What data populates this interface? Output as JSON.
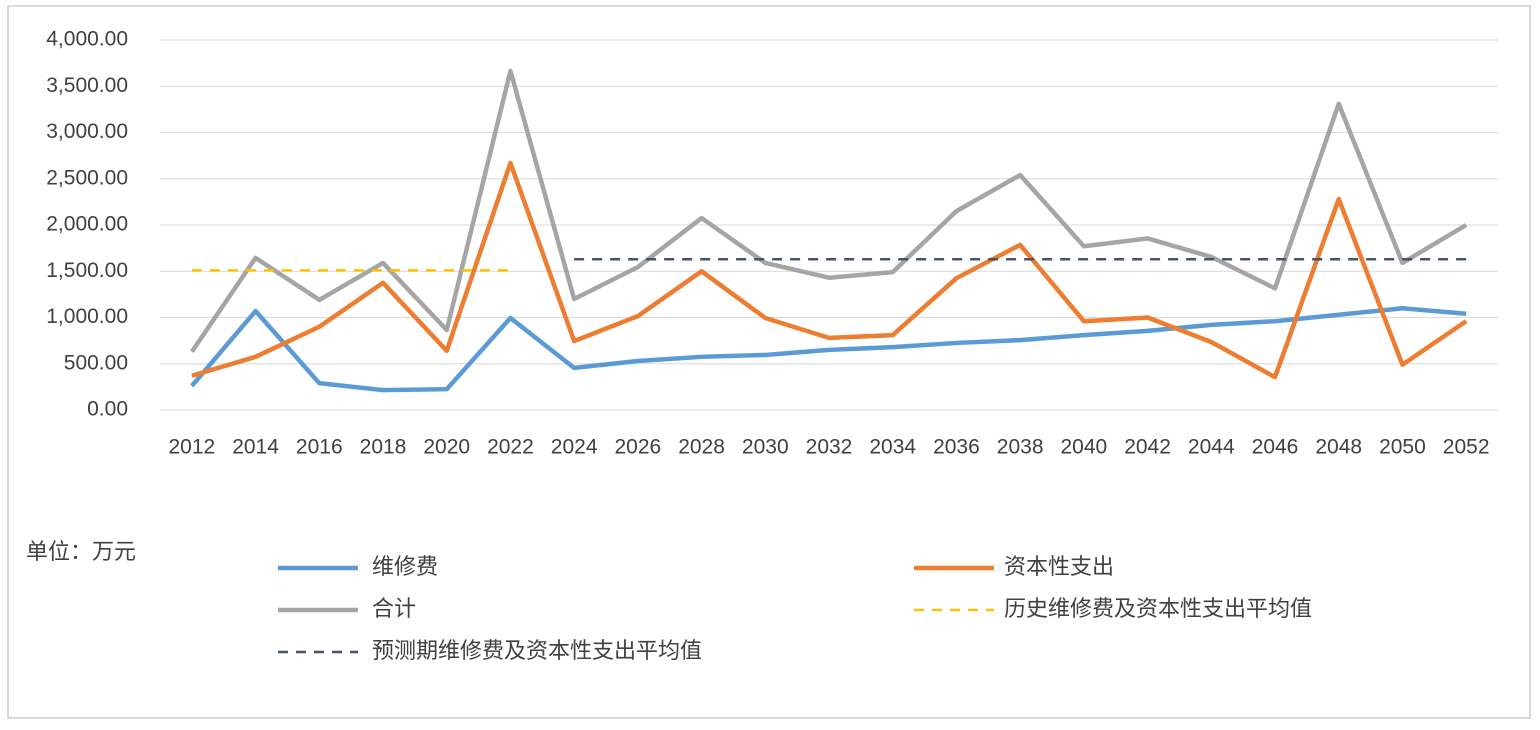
{
  "chart_data": {
    "type": "line",
    "categories": [
      "2012",
      "2014",
      "2016",
      "2018",
      "2020",
      "2022",
      "2024",
      "2026",
      "2028",
      "2030",
      "2032",
      "2034",
      "2036",
      "2038",
      "2040",
      "2042",
      "2044",
      "2046",
      "2048",
      "2050",
      "2052"
    ],
    "series": [
      {
        "name": "维修费",
        "color": "#5b9bd5",
        "dashed": false,
        "values": [
          260,
          1070,
          290,
          215,
          225,
          995,
          455,
          530,
          575,
          595,
          650,
          680,
          725,
          755,
          810,
          855,
          920,
          960,
          1030,
          1100,
          1040
        ]
      },
      {
        "name": "资本性支出",
        "color": "#ed7d31",
        "dashed": false,
        "values": [
          370,
          575,
          900,
          1375,
          640,
          2670,
          745,
          1015,
          1500,
          995,
          780,
          810,
          1425,
          1785,
          960,
          1000,
          735,
          355,
          2280,
          490,
          960
        ]
      },
      {
        "name": "合计",
        "color": "#a5a5a5",
        "dashed": false,
        "values": [
          630,
          1645,
          1190,
          1590,
          865,
          3665,
          1200,
          1545,
          2075,
          1590,
          1430,
          1490,
          2150,
          2540,
          1770,
          1855,
          1655,
          1315,
          3310,
          1590,
          2000
        ]
      },
      {
        "name": "历史维修费及资本性支出平均值",
        "color": "#ffc000",
        "dashed": true,
        "values": [
          1510,
          1510,
          1510,
          1510,
          1510,
          1510,
          null,
          null,
          null,
          null,
          null,
          null,
          null,
          null,
          null,
          null,
          null,
          null,
          null,
          null,
          null
        ]
      },
      {
        "name": "预测期维修费及资本性支出平均值",
        "color": "#44546a",
        "dashed": true,
        "values": [
          null,
          null,
          null,
          null,
          null,
          null,
          1630,
          1630,
          1630,
          1630,
          1630,
          1630,
          1630,
          1630,
          1630,
          1630,
          1630,
          1630,
          1630,
          1630,
          1630
        ]
      }
    ],
    "ylim": [
      0,
      4000
    ],
    "yticks": [
      {
        "value": 0,
        "label": "0.00"
      },
      {
        "value": 500,
        "label": "500.00"
      },
      {
        "value": 1000,
        "label": "1,000.00"
      },
      {
        "value": 1500,
        "label": "1,500.00"
      },
      {
        "value": 2000,
        "label": "2,000.00"
      },
      {
        "value": 2500,
        "label": "2,500.00"
      },
      {
        "value": 3000,
        "label": "3,000.00"
      },
      {
        "value": 3500,
        "label": "3,500.00"
      },
      {
        "value": 4000,
        "label": "4,000.00"
      }
    ],
    "grid": true,
    "annotation": "单位：万元"
  }
}
